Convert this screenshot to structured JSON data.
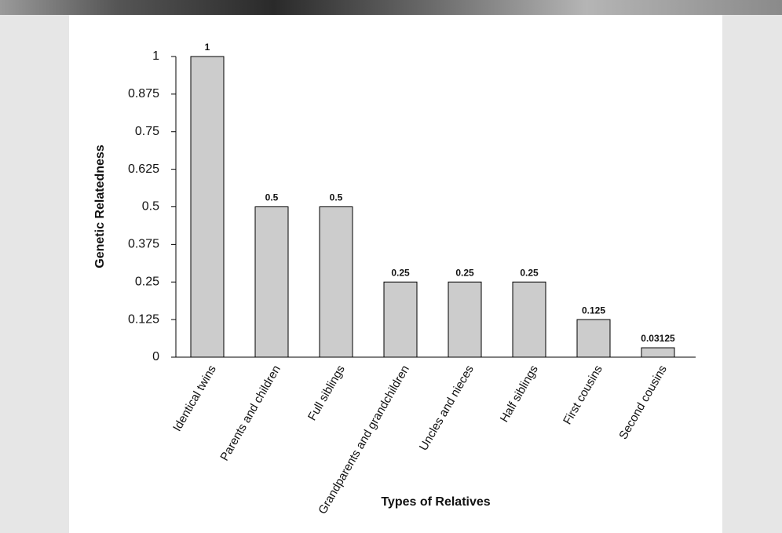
{
  "chart_data": {
    "type": "bar",
    "x_label": "Types of Relatives",
    "y_label": "Genetic Relatedness",
    "categories": [
      "Identical twins",
      "Parents and children",
      "Full siblings",
      "Grandparents and grandchildren",
      "Uncles and nieces",
      "Half siblings",
      "First cousins",
      "Second cousins"
    ],
    "values": [
      1,
      0.5,
      0.5,
      0.25,
      0.25,
      0.25,
      0.125,
      0.03125
    ],
    "color": "#cccccc",
    "ylim": [
      0,
      1
    ],
    "yticks": [
      0,
      0.125,
      0.25,
      0.375,
      0.5,
      0.625,
      0.75,
      0.875,
      1
    ],
    "grid": false
  }
}
